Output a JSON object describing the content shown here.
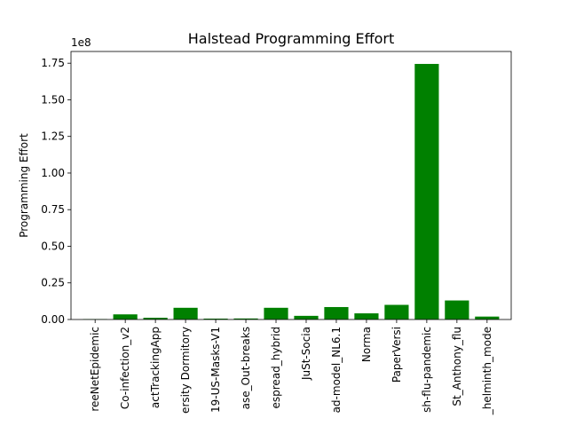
{
  "chart_data": {
    "type": "bar",
    "title": "Halstead Programming Effort",
    "xlabel": "",
    "ylabel": "Programming Effort",
    "y_offset_label": "1e8",
    "ylim": [
      0,
      1.83
    ],
    "yticks": [
      0.0,
      0.25,
      0.5,
      0.75,
      1.0,
      1.25,
      1.5,
      1.75
    ],
    "ytick_labels": [
      "0.00",
      "0.25",
      "0.50",
      "0.75",
      "1.00",
      "1.25",
      "1.50",
      "1.75"
    ],
    "bar_color": "#008000",
    "grid": false,
    "categories": [
      "reeNetEpidemic",
      "Co-infection_v2",
      "actTrackingApp",
      "ersity Dormitory",
      "19-US-Masks-V1",
      "ase_Out-breaks",
      "espread_hybrid",
      "JuSt-Socia",
      "ad-model_NL6.1",
      "Norma",
      "PaperVersi",
      "sh-flu-pandemic",
      "St_Anthony_flu",
      "_helminth_mode"
    ],
    "values": [
      0.003,
      0.035,
      0.012,
      0.08,
      0.006,
      0.007,
      0.08,
      0.025,
      0.085,
      0.042,
      0.1,
      1.745,
      0.13,
      0.02
    ]
  }
}
